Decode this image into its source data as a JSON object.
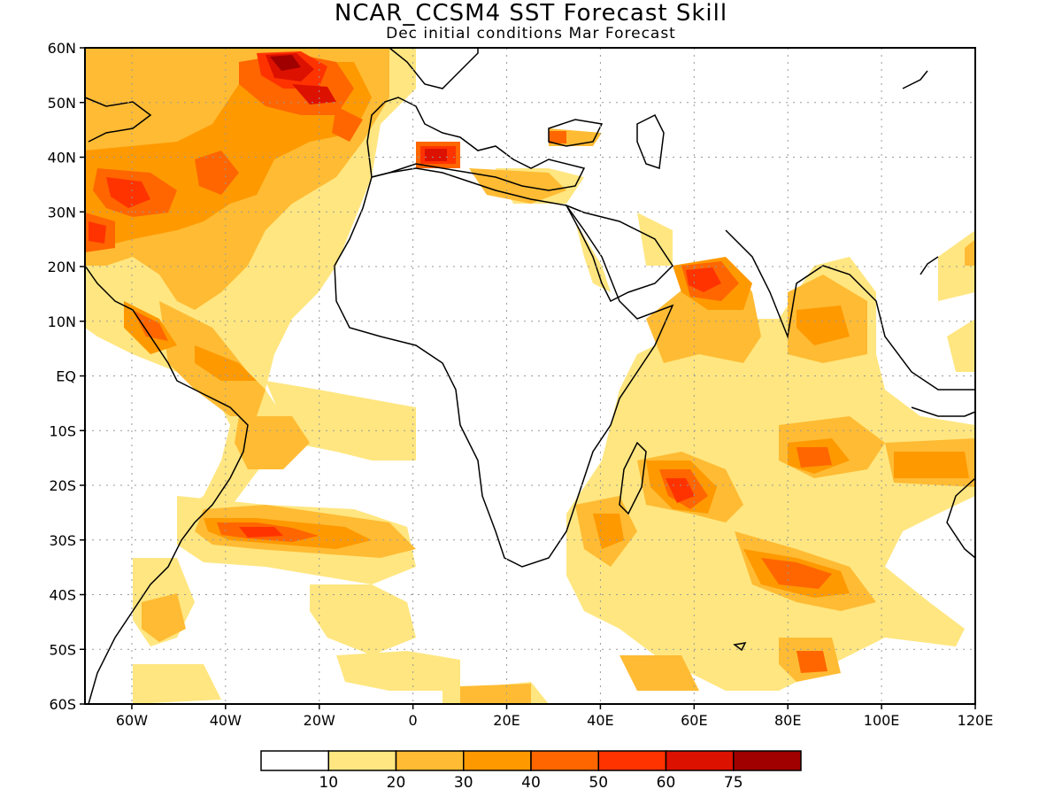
{
  "title": "NCAR_CCSM4 SST Forecast Skill",
  "subtitle": "Dec initial conditions  Mar Forecast",
  "axes": {
    "x_ticks": [
      "60W",
      "40W",
      "20W",
      "0",
      "20E",
      "40E",
      "60E",
      "80E",
      "100E",
      "120E"
    ],
    "x_values": [
      -60,
      -40,
      -20,
      0,
      20,
      40,
      60,
      80,
      100,
      120
    ],
    "y_ticks": [
      "60N",
      "50N",
      "40N",
      "30N",
      "20N",
      "10N",
      "EQ",
      "10S",
      "20S",
      "30S",
      "40S",
      "50S",
      "60S"
    ],
    "y_values": [
      60,
      50,
      40,
      30,
      20,
      10,
      0,
      -10,
      -20,
      -30,
      -40,
      -50,
      -60
    ],
    "lon_range": [
      -70,
      120
    ],
    "lat_range": [
      -60,
      60
    ],
    "grid": "dotted"
  },
  "colorbar": {
    "labels": [
      "10",
      "20",
      "30",
      "40",
      "50",
      "60",
      "75"
    ],
    "colors": [
      "#ffffff",
      "#ffe680",
      "#ffbb33",
      "#ff9900",
      "#ff6600",
      "#ff3300",
      "#dd1100",
      "#a00000"
    ]
  },
  "colors": {
    "c1": "#ffe680",
    "c2": "#ffbb33",
    "c3": "#ff9900",
    "c4": "#ff6600",
    "c5": "#ff3300",
    "c6": "#dd1100",
    "c7": "#a00000"
  }
}
